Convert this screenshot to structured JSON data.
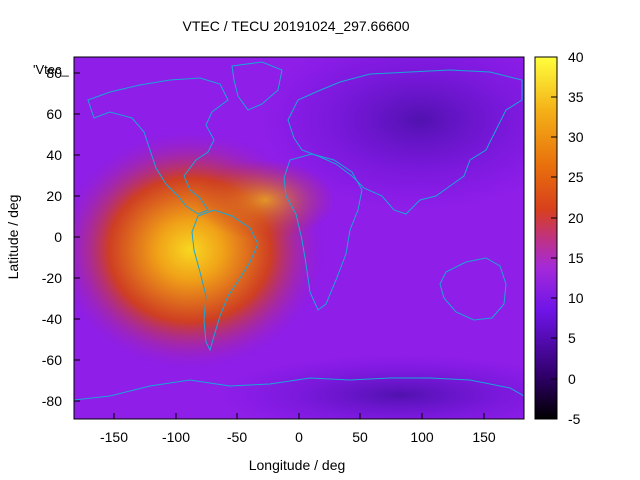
{
  "chart_data": {
    "type": "heatmap",
    "title": "VTEC / TECU 20191024_297.66600",
    "xlabel": "Longitude / deg",
    "ylabel": "Latitude / deg",
    "xlim": [
      -180,
      180
    ],
    "ylim": [
      -90,
      90
    ],
    "xticks": [
      -150,
      -100,
      -50,
      0,
      50,
      100,
      150
    ],
    "yticks": [
      -80,
      -60,
      -40,
      -20,
      0,
      20,
      40,
      60,
      80
    ],
    "colorbar": {
      "range": [
        -5,
        40
      ],
      "ticks": [
        40,
        35,
        30,
        25,
        20,
        15,
        10,
        5,
        0,
        -5
      ],
      "colors": [
        "#000000",
        "#3a0070",
        "#7a16e6",
        "#b02ad0",
        "#d4401e",
        "#e8780c",
        "#f0b020",
        "#ffff40"
      ]
    },
    "legend_entry": "'Vtec_",
    "grid": false,
    "peak": {
      "lon": -90,
      "lat": 0,
      "value": 40
    },
    "background_value": 10
  }
}
